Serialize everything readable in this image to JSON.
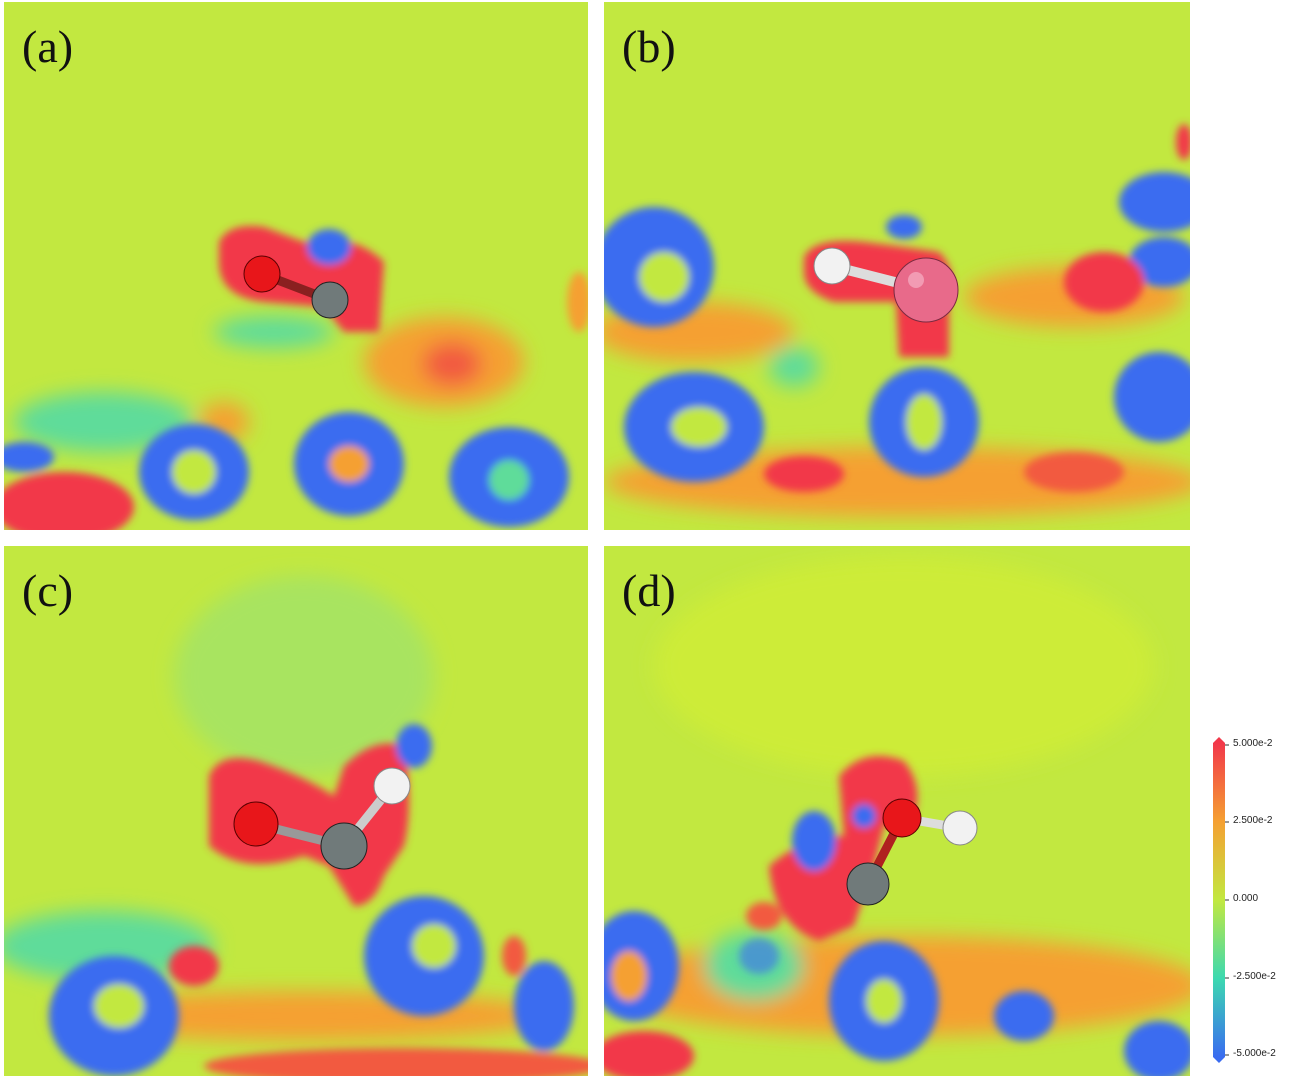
{
  "panels": [
    {
      "id": "a",
      "label": "(a)"
    },
    {
      "id": "b",
      "label": "(b)"
    },
    {
      "id": "c",
      "label": "(c)"
    },
    {
      "id": "d",
      "label": "(d)"
    }
  ],
  "colorbar": {
    "ticks": [
      "5.000e-2",
      "2.500e-2",
      "0.000",
      "-2.500e-2",
      "-5.000e-2"
    ],
    "colors": [
      "#f2384a",
      "#f5a032",
      "#c2e840",
      "#3cd9b0",
      "#3a6cf0"
    ]
  },
  "colors": {
    "positive": "#f2384a",
    "positive_mid": "#f5a032",
    "neutral": "#c2e840",
    "negative_mid": "#5fdc9a",
    "negative": "#3a6cf0",
    "atom_oxygen": "#e8161a",
    "atom_carbon": "#707a7a",
    "atom_hydrogen": "#f2f2f2",
    "atom_metal": "#e86a8a"
  }
}
